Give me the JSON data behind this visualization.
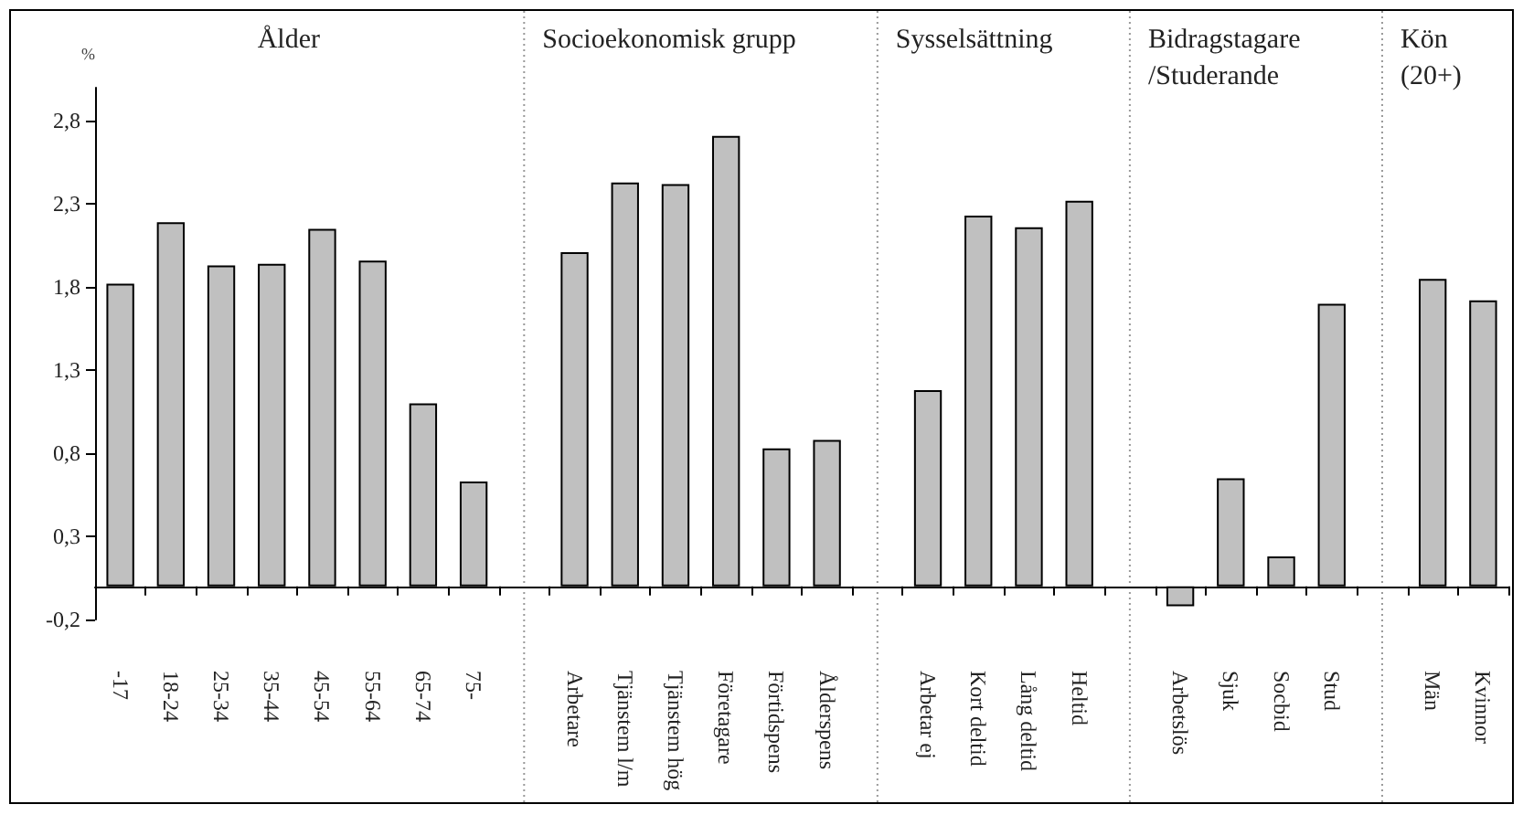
{
  "chart_data": {
    "type": "bar",
    "ylabel": "%",
    "categories": [
      "-17",
      "18-24",
      "25-34",
      "35-44",
      "45-54",
      "55-64",
      "65-74",
      "75-",
      null,
      "Arbetare",
      "Tjänstem l/m",
      "Tjänstem hög",
      "Företagare",
      "Förtidspens",
      "Ålderspens",
      null,
      "Arbetar ej",
      "Kort deltid",
      "Lång deltid",
      "Heltid",
      null,
      "Arbetslös",
      "Sjuk",
      "Socbid",
      "Stud",
      null,
      "Män",
      "Kvinnor"
    ],
    "values": [
      1.82,
      2.19,
      1.93,
      1.94,
      2.15,
      1.96,
      1.1,
      0.63,
      null,
      2.01,
      2.43,
      2.42,
      2.71,
      0.83,
      0.88,
      null,
      1.18,
      2.23,
      2.16,
      2.32,
      null,
      -0.12,
      0.65,
      0.18,
      1.7,
      null,
      1.85,
      1.72
    ],
    "color": "#c0c0c0",
    "grid": "x",
    "annotations": [
      "Ålder",
      "Socioekonomisk grupp",
      "Sysselsättning",
      "Bidragstagare\n/Studerande",
      "Kön\n(20+)"
    ],
    "ylim": [
      -0.2,
      3.0
    ],
    "yticks": [
      {
        "value": -0.2,
        "label": "-0,2"
      },
      {
        "value": 0.3,
        "label": "0,3"
      },
      {
        "value": 0.8,
        "label": "0,8"
      },
      {
        "value": 1.3,
        "label": "1,3"
      },
      {
        "value": 1.8,
        "label": "1,8"
      },
      {
        "value": 2.3,
        "label": "2,3"
      },
      {
        "value": 2.8,
        "label": "2,8"
      }
    ]
  }
}
